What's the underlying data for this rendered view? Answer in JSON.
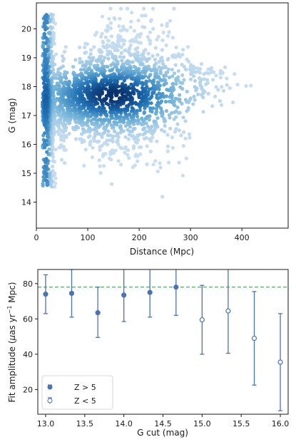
{
  "chart_data": [
    {
      "type": "heatmap",
      "title": "",
      "xlabel": "Distance (Mpc)",
      "ylabel": "G (mag)",
      "xlim": [
        0,
        490
      ],
      "ylim": [
        13.1,
        20.9
      ],
      "xticks": [
        "0",
        "100",
        "200",
        "300",
        "400"
      ],
      "xtick_values": [
        0,
        100,
        200,
        300,
        400
      ],
      "yticks": [
        "14",
        "15",
        "16",
        "17",
        "18",
        "19",
        "20"
      ],
      "ytick_values": [
        14,
        15,
        16,
        17,
        18,
        19,
        20
      ],
      "colormap": "Blues",
      "density_peak": {
        "distance": 150,
        "G": 17.7
      },
      "grid": false
    },
    {
      "type": "scatter",
      "title": "",
      "xlabel": "G cut (mag)",
      "ylabel": "Fit amplitude (μas yr⁻¹ Mpc)",
      "ylabel_parts": [
        "Fit amplitude (",
        "μ",
        "as yr",
        "−1",
        " Mpc)"
      ],
      "xlim": [
        12.9,
        16.1
      ],
      "ylim": [
        6,
        88
      ],
      "xticks": [
        "13.0",
        "13.5",
        "14.0",
        "14.5",
        "15.0",
        "15.5",
        "16.0"
      ],
      "xtick_values": [
        13.0,
        13.5,
        14.0,
        14.5,
        15.0,
        15.5,
        16.0
      ],
      "yticks": [
        "20",
        "40",
        "60",
        "80"
      ],
      "ytick_values": [
        20,
        40,
        60,
        80
      ],
      "reference_line": {
        "y": 78,
        "color": "#55a868",
        "style": "dashed"
      },
      "series": [
        {
          "name": "Z > 5",
          "marker": "filled",
          "color": "#4c72b0",
          "x": [
            13.0,
            13.333,
            13.667,
            14.0,
            14.333,
            14.667
          ],
          "y": [
            74,
            74.5,
            63.5,
            73.5,
            75,
            78
          ],
          "err_low": [
            11,
            13.5,
            14,
            15,
            14,
            16
          ],
          "err_high": [
            11,
            13.5,
            14.5,
            15,
            14.5,
            16.5
          ]
        },
        {
          "name": "Z < 5",
          "marker": "open",
          "color": "#4c72b0",
          "x": [
            15.0,
            15.333,
            15.667,
            16.0
          ],
          "y": [
            59.5,
            64.5,
            49,
            35.5
          ],
          "err_low": [
            19.5,
            24,
            26.5,
            27.5
          ],
          "err_high": [
            19.5,
            24,
            26.5,
            27.5
          ]
        }
      ],
      "legend_location": "lower-left",
      "grid": false
    }
  ]
}
